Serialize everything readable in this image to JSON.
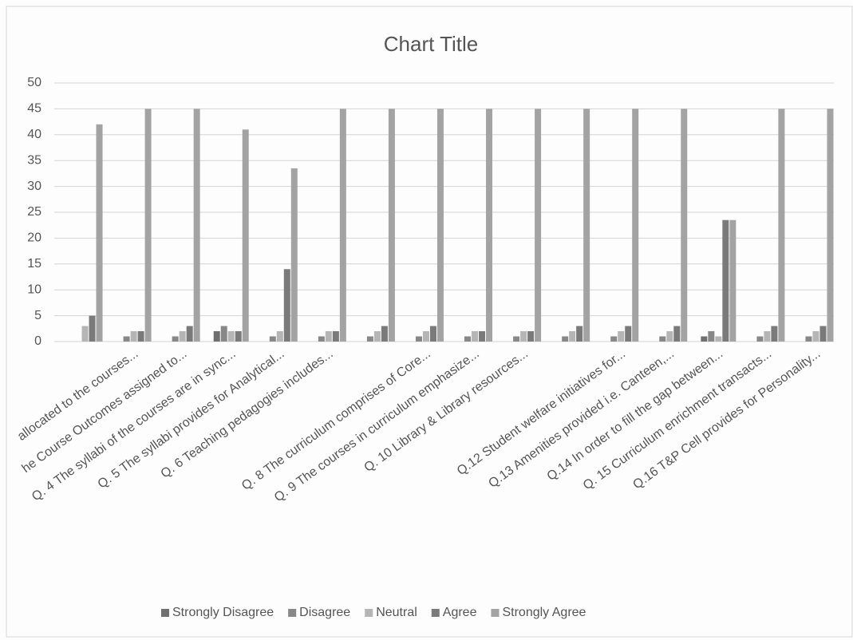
{
  "chart_data": {
    "type": "bar",
    "title": "Chart Title",
    "categories": [
      null,
      "allocated to the courses...",
      "he Course Outcomes assigned to...",
      "Q. 4 The syllabi of the courses are in sync...",
      "Q. 5 The syllabi provides for Analytical...",
      "Q. 6 Teaching pedagogies includes...",
      null,
      "Q. 8 The curriculum comprises of Core...",
      "Q. 9 The courses in curriculum emphasize...",
      "Q. 10 Library & Library resources...",
      null,
      "Q.12 Student welfare initiatives for...",
      "Q.13 Amenities provided i.e. Canteen,...",
      "Q.14 In order to fill the gap between...",
      "Q. 15 Curriculum enrichment transacts...",
      "Q.16 T&P Cell provides for Personality..."
    ],
    "series": [
      {
        "name": "Strongly Disagree",
        "color": "#6f6f6f",
        "values": [
          0,
          0,
          0,
          2,
          0,
          0,
          0,
          0,
          0,
          0,
          0,
          0,
          0,
          1,
          0,
          0
        ]
      },
      {
        "name": "Disagree",
        "color": "#888888",
        "values": [
          0,
          1,
          1,
          3,
          1,
          1,
          1,
          1,
          1,
          1,
          1,
          1,
          1,
          2,
          1,
          1
        ]
      },
      {
        "name": "Neutral",
        "color": "#b5b5b5",
        "values": [
          3,
          2,
          2,
          2,
          2,
          2,
          2,
          2,
          2,
          2,
          2,
          2,
          2,
          1,
          2,
          2
        ]
      },
      {
        "name": "Agree",
        "color": "#7a7a7a",
        "values": [
          5,
          2,
          3,
          2,
          14,
          2,
          3,
          3,
          2,
          2,
          3,
          3,
          3,
          23.5,
          3,
          3
        ]
      },
      {
        "name": "Strongly Agree",
        "color": "#a3a3a3",
        "values": [
          42,
          45,
          45,
          41,
          33.5,
          45,
          45,
          45,
          45,
          45,
          45,
          45,
          45,
          23.5,
          45,
          45
        ]
      }
    ],
    "ylim": [
      0,
      50
    ],
    "yticks": [
      0,
      5,
      10,
      15,
      20,
      25,
      30,
      35,
      40,
      45,
      50
    ],
    "grid": true,
    "legend": "bottom"
  }
}
